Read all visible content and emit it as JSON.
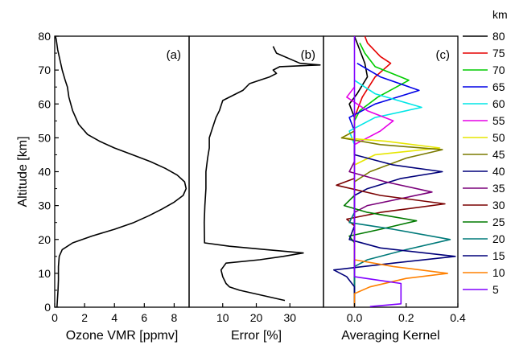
{
  "chart_data": {
    "type": "line",
    "y_axis": {
      "label": "Altitude [km]",
      "range": [
        0,
        80
      ],
      "ticks": [
        0,
        10,
        20,
        30,
        40,
        50,
        60,
        70,
        80
      ]
    },
    "panels": [
      {
        "tag": "(a)",
        "xlabel": "Ozone VMR [ppmv]",
        "xlim": [
          0,
          9
        ],
        "xticks": [
          0,
          2,
          4,
          6,
          8
        ],
        "series": [
          {
            "color": "#000000",
            "points": [
              [
                0.15,
                0
              ],
              [
                0.18,
                2
              ],
              [
                0.22,
                5
              ],
              [
                0.25,
                8
              ],
              [
                0.25,
                12
              ],
              [
                0.3,
                15
              ],
              [
                0.5,
                17
              ],
              [
                1.2,
                19
              ],
              [
                2.5,
                21
              ],
              [
                4.0,
                23
              ],
              [
                5.3,
                25
              ],
              [
                6.3,
                27
              ],
              [
                7.2,
                29
              ],
              [
                8.0,
                31
              ],
              [
                8.6,
                33
              ],
              [
                8.8,
                35
              ],
              [
                8.7,
                37
              ],
              [
                8.2,
                39
              ],
              [
                7.4,
                41
              ],
              [
                6.4,
                43
              ],
              [
                5.2,
                45
              ],
              [
                4.0,
                47
              ],
              [
                3.0,
                49
              ],
              [
                2.2,
                51
              ],
              [
                1.6,
                54
              ],
              [
                1.2,
                58
              ],
              [
                0.95,
                62
              ],
              [
                0.85,
                65
              ],
              [
                0.7,
                67
              ],
              [
                0.5,
                70
              ],
              [
                0.35,
                73
              ],
              [
                0.2,
                76
              ],
              [
                0.1,
                79
              ],
              [
                0.05,
                80
              ]
            ]
          }
        ]
      },
      {
        "tag": "(b)",
        "xlabel": "Error [%]",
        "xlim": [
          0,
          40
        ],
        "xticks": [
          10,
          20,
          30
        ],
        "series": [
          {
            "color": "#000000",
            "points": [
              [
                28.5,
                2
              ],
              [
                15,
                5
              ],
              [
                12,
                6
              ],
              [
                11,
                7
              ],
              [
                10,
                9
              ],
              [
                9.5,
                11
              ],
              [
                11,
                13
              ],
              [
                21,
                14
              ],
              [
                28,
                15
              ],
              [
                34,
                16
              ],
              [
                23,
                17
              ],
              [
                12,
                18
              ],
              [
                4.6,
                19
              ],
              [
                4.5,
                25
              ],
              [
                4.7,
                30
              ],
              [
                5,
                35
              ],
              [
                5,
                40
              ],
              [
                5.5,
                44
              ],
              [
                6,
                47
              ],
              [
                6,
                50
              ],
              [
                7,
                53
              ],
              [
                8,
                56
              ],
              [
                9,
                58
              ],
              [
                10,
                61
              ],
              [
                16,
                64
              ],
              [
                18,
                66
              ],
              [
                21,
                67
              ],
              [
                24,
                68
              ],
              [
                26,
                69
              ],
              [
                25,
                70
              ],
              [
                27,
                71
              ],
              [
                39,
                71.5
              ],
              [
                33,
                72
              ],
              [
                26,
                75
              ],
              [
                25,
                77
              ]
            ]
          }
        ]
      },
      {
        "tag": "(c)",
        "xlabel": "Averaging Kernel",
        "xlim": [
          -0.12,
          0.4
        ],
        "xticks": [
          0.0,
          0.2,
          0.4
        ],
        "xticklabels": [
          "0.0",
          "0.2",
          "0.4"
        ],
        "series": [
          {
            "name": "80",
            "color": "#000000",
            "points": [
              [
                0.0,
                0
              ],
              [
                0.0,
                56
              ],
              [
                -0.02,
                60
              ],
              [
                0.01,
                63
              ],
              [
                0.05,
                68
              ],
              [
                0.04,
                72
              ],
              [
                0.02,
                76
              ],
              [
                0.0,
                80
              ]
            ]
          },
          {
            "name": "75",
            "color": "#e60000",
            "points": [
              [
                0.0,
                0
              ],
              [
                0.0,
                56
              ],
              [
                0.03,
                62
              ],
              [
                0.08,
                68
              ],
              [
                0.14,
                72
              ],
              [
                0.1,
                74
              ],
              [
                0.05,
                78
              ],
              [
                0.04,
                80
              ]
            ]
          },
          {
            "name": "70",
            "color": "#00cc00",
            "points": [
              [
                0.0,
                0
              ],
              [
                0.0,
                55
              ],
              [
                0.02,
                58
              ],
              [
                0.09,
                62
              ],
              [
                0.21,
                67
              ],
              [
                0.08,
                71
              ],
              [
                0.04,
                75
              ],
              [
                0.02,
                78
              ]
            ]
          },
          {
            "name": "65",
            "color": "#0000e6",
            "points": [
              [
                0.0,
                0
              ],
              [
                0.0,
                52
              ],
              [
                -0.02,
                56
              ],
              [
                0.08,
                60
              ],
              [
                0.25,
                64
              ],
              [
                0.1,
                68
              ],
              [
                0.01,
                72
              ]
            ]
          },
          {
            "name": "60",
            "color": "#00e6e6",
            "points": [
              [
                0.0,
                0
              ],
              [
                0.0,
                48
              ],
              [
                -0.02,
                52
              ],
              [
                0.08,
                56
              ],
              [
                0.26,
                59
              ],
              [
                0.08,
                63
              ],
              [
                0.0,
                67
              ]
            ]
          },
          {
            "name": "55",
            "color": "#e600e6",
            "points": [
              [
                0.0,
                0
              ],
              [
                0.0,
                45
              ],
              [
                0.0,
                48
              ],
              [
                0.1,
                52
              ],
              [
                0.15,
                55
              ],
              [
                0.05,
                58
              ],
              [
                -0.03,
                62
              ],
              [
                0.0,
                65
              ]
            ]
          },
          {
            "name": "50",
            "color": "#e6e600",
            "points": [
              [
                0.0,
                0
              ],
              [
                0.0,
                42
              ],
              [
                0.08,
                45
              ],
              [
                0.33,
                47
              ],
              [
                0.12,
                49
              ],
              [
                -0.05,
                50
              ],
              [
                0.0,
                52
              ],
              [
                0.0,
                55
              ]
            ]
          },
          {
            "name": "45",
            "color": "#7a7a00",
            "points": [
              [
                0.0,
                0
              ],
              [
                0.0,
                37
              ],
              [
                0.06,
                40
              ],
              [
                0.2,
                44
              ],
              [
                0.34,
                46.5
              ],
              [
                0.1,
                48
              ],
              [
                -0.05,
                50
              ],
              [
                0.0,
                52
              ]
            ]
          },
          {
            "name": "40",
            "color": "#00007a",
            "points": [
              [
                0.0,
                0
              ],
              [
                0.0,
                33
              ],
              [
                0.05,
                35
              ],
              [
                0.18,
                38
              ],
              [
                0.34,
                40
              ],
              [
                0.15,
                42
              ],
              [
                0.0,
                45
              ],
              [
                0.0,
                48
              ]
            ]
          },
          {
            "name": "35",
            "color": "#7a007a",
            "points": [
              [
                0.0,
                0
              ],
              [
                0.0,
                28
              ],
              [
                0.05,
                30
              ],
              [
                0.3,
                34
              ],
              [
                0.12,
                37
              ],
              [
                -0.02,
                40
              ],
              [
                0.0,
                43
              ]
            ]
          },
          {
            "name": "30",
            "color": "#7a0000",
            "points": [
              [
                0.0,
                0
              ],
              [
                0.0,
                24
              ],
              [
                -0.03,
                26
              ],
              [
                0.1,
                28
              ],
              [
                0.35,
                30.5
              ],
              [
                0.1,
                33
              ],
              [
                -0.07,
                36
              ],
              [
                0.0,
                38
              ]
            ]
          },
          {
            "name": "25",
            "color": "#007a00",
            "points": [
              [
                0.0,
                0
              ],
              [
                0.0,
                19
              ],
              [
                -0.02,
                21
              ],
              [
                0.1,
                23
              ],
              [
                0.24,
                25.5
              ],
              [
                0.05,
                28
              ],
              [
                -0.04,
                30
              ],
              [
                0.0,
                33
              ]
            ]
          },
          {
            "name": "20",
            "color": "#007a7a",
            "points": [
              [
                0.0,
                0
              ],
              [
                0.0,
                12
              ],
              [
                0.05,
                14
              ],
              [
                0.2,
                17
              ],
              [
                0.37,
                20
              ],
              [
                0.15,
                23
              ],
              [
                -0.02,
                25
              ],
              [
                0.0,
                28
              ]
            ]
          },
          {
            "name": "15",
            "color": "#00007a",
            "points": [
              [
                0.0,
                0
              ],
              [
                0.0,
                6
              ],
              [
                -0.03,
                9
              ],
              [
                -0.08,
                11
              ],
              [
                0.15,
                13
              ],
              [
                0.39,
                15
              ],
              [
                0.1,
                17.5
              ],
              [
                -0.02,
                20
              ],
              [
                0.0,
                24
              ]
            ]
          },
          {
            "name": "10",
            "color": "#ff8000",
            "points": [
              [
                0.0,
                0
              ],
              [
                0.0,
                4
              ],
              [
                0.06,
                6
              ],
              [
                0.2,
                8.5
              ],
              [
                0.36,
                10
              ],
              [
                0.15,
                12
              ],
              [
                0.0,
                14
              ],
              [
                0.0,
                20
              ]
            ]
          },
          {
            "name": "5",
            "color": "#8000ff",
            "points": [
              [
                0.06,
                0.2
              ],
              [
                0.18,
                1
              ],
              [
                0.18,
                7
              ],
              [
                0.09,
                8
              ],
              [
                0.0,
                9
              ],
              [
                0.0,
                20
              ],
              [
                0.0,
                40
              ],
              [
                0.0,
                60
              ],
              [
                0.0,
                80
              ]
            ]
          }
        ]
      }
    ],
    "legend": {
      "title": "km",
      "position": "right"
    }
  }
}
